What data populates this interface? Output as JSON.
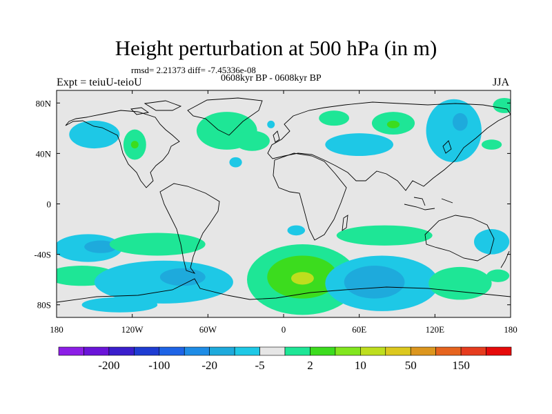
{
  "chart_data": {
    "type": "heatmap",
    "title": "Height perturbation at 500 hPa (in m)",
    "stats_text": "rmsd= 2.21373 diff= -7.45336e-08",
    "period_text": "0608kyr BP - 0608kyr BP",
    "experiment_text": "Expt = teiuU-teioU",
    "season": "JJA",
    "x_ticks": [
      {
        "lon": -180,
        "label": "180"
      },
      {
        "lon": -120,
        "label": "120W"
      },
      {
        "lon": -60,
        "label": "60W"
      },
      {
        "lon": 0,
        "label": "0"
      },
      {
        "lon": 60,
        "label": "60E"
      },
      {
        "lon": 120,
        "label": "120E"
      },
      {
        "lon": 180,
        "label": "180"
      }
    ],
    "y_ticks": [
      {
        "lat": 80,
        "label": "80N"
      },
      {
        "lat": 40,
        "label": "40N"
      },
      {
        "lat": 0,
        "label": "0"
      },
      {
        "lat": -40,
        "label": "-40S"
      },
      {
        "lat": -80,
        "label": "80S"
      }
    ],
    "xlim": [
      -180,
      180
    ],
    "ylim": [
      -90,
      90
    ],
    "colorbar": {
      "colors": [
        "#8c1ee6",
        "#6a14d8",
        "#3a1ecc",
        "#1e3cd2",
        "#1e64e6",
        "#1e8ce6",
        "#1eaadc",
        "#1ec8e6",
        "#e6e6e6",
        "#1ee696",
        "#3cdc1e",
        "#82e61e",
        "#bede1e",
        "#dcc81e",
        "#dc961e",
        "#e6641e",
        "#e63c1e",
        "#e60a0a"
      ],
      "labels": [
        {
          "after_index": 1,
          "text": "-200"
        },
        {
          "after_index": 3,
          "text": "-100"
        },
        {
          "after_index": 5,
          "text": "-20"
        },
        {
          "after_index": 7,
          "text": "-5"
        },
        {
          "after_index": 9,
          "text": "2"
        },
        {
          "after_index": 11,
          "text": "10"
        },
        {
          "after_index": 13,
          "text": "50"
        },
        {
          "after_index": 15,
          "text": "150"
        }
      ]
    },
    "anomaly_regions": [
      {
        "lon": -150,
        "lat": 55,
        "rlon": 20,
        "rlat": 11,
        "level": "-5",
        "color": "#1ec8e6"
      },
      {
        "lon": -118,
        "lat": 47,
        "rlon": 9,
        "rlat": 12,
        "level": "2",
        "color": "#1ee696"
      },
      {
        "lon": -118,
        "lat": 47,
        "rlon": 3,
        "rlat": 3,
        "level": "10",
        "color": "#3cdc1e"
      },
      {
        "lon": -45,
        "lat": 58,
        "rlon": 24,
        "rlat": 15,
        "level": "2",
        "color": "#1ee696"
      },
      {
        "lon": -25,
        "lat": 50,
        "rlon": 14,
        "rlat": 8,
        "level": "2",
        "color": "#1ee696"
      },
      {
        "lon": -10,
        "lat": 63,
        "rlon": 3,
        "rlat": 3,
        "level": "-5",
        "color": "#1ec8e6"
      },
      {
        "lon": -38,
        "lat": 33,
        "rlon": 5,
        "rlat": 4,
        "level": "-5",
        "color": "#1ec8e6"
      },
      {
        "lon": 40,
        "lat": 68,
        "rlon": 12,
        "rlat": 6,
        "level": "2",
        "color": "#1ee696"
      },
      {
        "lon": 60,
        "lat": 47,
        "rlon": 27,
        "rlat": 9,
        "level": "-5",
        "color": "#1ec8e6"
      },
      {
        "lon": 87,
        "lat": 64,
        "rlon": 17,
        "rlat": 9,
        "level": "2",
        "color": "#1ee696"
      },
      {
        "lon": 87,
        "lat": 63,
        "rlon": 5,
        "rlat": 3,
        "level": "10",
        "color": "#3cdc1e"
      },
      {
        "lon": 135,
        "lat": 58,
        "rlon": 22,
        "rlat": 25,
        "level": "-5",
        "color": "#1ec8e6"
      },
      {
        "lon": 140,
        "lat": 65,
        "rlon": 6,
        "rlat": 7,
        "level": "-20",
        "color": "#1eaadc"
      },
      {
        "lon": 165,
        "lat": 47,
        "rlon": 8,
        "rlat": 4,
        "level": "2",
        "color": "#1ee696"
      },
      {
        "lon": 175,
        "lat": 78,
        "rlon": 9,
        "rlat": 6,
        "level": "2",
        "color": "#1ee696"
      },
      {
        "lon": 10,
        "lat": -21,
        "rlon": 7,
        "rlat": 4,
        "level": "-5",
        "color": "#1ec8e6"
      },
      {
        "lon": -155,
        "lat": -35,
        "rlon": 27,
        "rlat": 11,
        "level": "-5",
        "color": "#1ec8e6"
      },
      {
        "lon": -145,
        "lat": -34,
        "rlon": 13,
        "rlat": 5,
        "level": "-20",
        "color": "#1eaadc"
      },
      {
        "lon": -100,
        "lat": -32,
        "rlon": 38,
        "rlat": 9,
        "level": "2",
        "color": "#1ee696"
      },
      {
        "lon": -160,
        "lat": -57,
        "rlon": 28,
        "rlat": 8,
        "level": "2",
        "color": "#1ee696"
      },
      {
        "lon": -95,
        "lat": -62,
        "rlon": 55,
        "rlat": 17,
        "level": "-5",
        "color": "#1ec8e6"
      },
      {
        "lon": -80,
        "lat": -58,
        "rlon": 18,
        "rlat": 7,
        "level": "-20",
        "color": "#1eaadc"
      },
      {
        "lon": -130,
        "lat": -80,
        "rlon": 30,
        "rlat": 6,
        "level": "-5",
        "color": "#1ec8e6"
      },
      {
        "lon": 15,
        "lat": -60,
        "rlon": 44,
        "rlat": 28,
        "level": "2",
        "color": "#1ee696"
      },
      {
        "lon": 15,
        "lat": -58,
        "rlon": 28,
        "rlat": 17,
        "level": "10",
        "color": "#3cdc1e"
      },
      {
        "lon": 15,
        "lat": -59,
        "rlon": 9,
        "rlat": 5,
        "level": "50",
        "color": "#bede1e"
      },
      {
        "lon": 80,
        "lat": -25,
        "rlon": 38,
        "rlat": 8,
        "level": "2",
        "color": "#1ee696"
      },
      {
        "lon": 78,
        "lat": -63,
        "rlon": 45,
        "rlat": 22,
        "level": "-5",
        "color": "#1ec8e6"
      },
      {
        "lon": 72,
        "lat": -62,
        "rlon": 24,
        "rlat": 13,
        "level": "-20",
        "color": "#1eaadc"
      },
      {
        "lon": 140,
        "lat": -63,
        "rlon": 25,
        "rlat": 13,
        "level": "2",
        "color": "#1ee696"
      },
      {
        "lon": 165,
        "lat": -30,
        "rlon": 14,
        "rlat": 10,
        "level": "-5",
        "color": "#1ec8e6"
      },
      {
        "lon": 170,
        "lat": -57,
        "rlon": 9,
        "rlat": 5,
        "level": "2",
        "color": "#1ee696"
      }
    ]
  }
}
